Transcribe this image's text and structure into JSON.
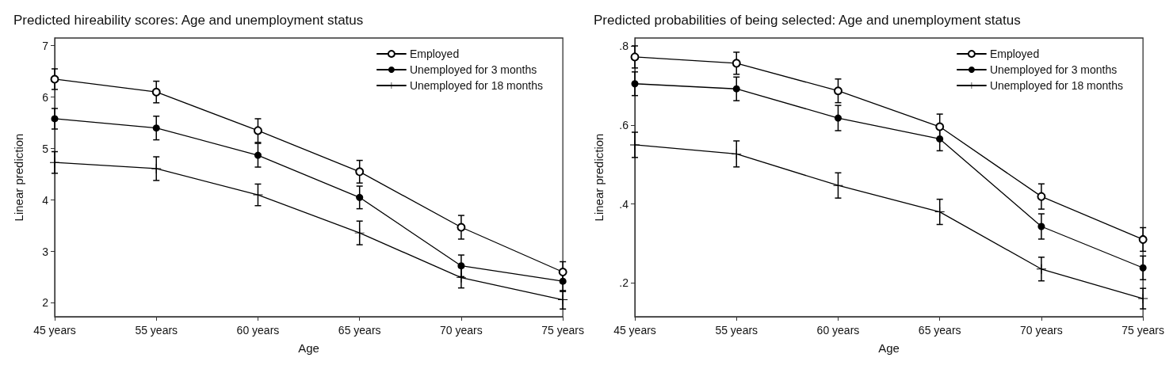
{
  "chart_data": [
    {
      "type": "line",
      "title": "Predicted hireability scores: Age and unemployment status",
      "xlabel": "Age",
      "ylabel": "Linear prediction",
      "categories": [
        "45 years",
        "55 years",
        "60 years",
        "65 years",
        "70 years",
        "75 years"
      ],
      "ylim": [
        1.73,
        7.15
      ],
      "yticks": [
        2,
        3,
        4,
        5,
        6,
        7
      ],
      "grid": false,
      "legend": "top right",
      "line_style": "solid",
      "series": [
        {
          "name": "Employed",
          "color": "#000000",
          "marker": "circle-open",
          "values": [
            6.35,
            6.1,
            5.35,
            4.55,
            3.47,
            2.6
          ],
          "errors": [
            0.2,
            0.21,
            0.23,
            0.22,
            0.23,
            0.2
          ]
        },
        {
          "name": "Unemployed for 3 months",
          "color": "#000000",
          "marker": "circle",
          "values": [
            5.58,
            5.4,
            4.87,
            4.05,
            2.72,
            2.42
          ],
          "errors": [
            0.2,
            0.23,
            0.23,
            0.22,
            0.21,
            0.2
          ]
        },
        {
          "name": "Unemployed for 18 months",
          "color": "#000000",
          "marker": "cross",
          "values": [
            4.73,
            4.61,
            4.1,
            3.36,
            2.49,
            2.06
          ],
          "errors": [
            0.21,
            0.23,
            0.21,
            0.23,
            0.2,
            0.18
          ]
        }
      ]
    },
    {
      "type": "line",
      "title": "Predicted probabilities of being selected: Age and unemployment status",
      "xlabel": "Age",
      "ylabel": "Linear prediction",
      "categories": [
        "45 years",
        "55 years",
        "60 years",
        "65 years",
        "70 years",
        "75 years"
      ],
      "ylim": [
        0.114,
        0.821
      ],
      "yticks": [
        {
          "value": 0.2,
          "label": ".2"
        },
        {
          "value": 0.4,
          "label": ".4"
        },
        {
          "value": 0.6,
          "label": ".6"
        },
        {
          "value": 0.8,
          "label": ".8"
        }
      ],
      "grid": false,
      "legend": "top right",
      "line_style": "solid",
      "series": [
        {
          "name": "Employed",
          "color": "#000000",
          "marker": "circle-open",
          "values": [
            0.773,
            0.757,
            0.687,
            0.596,
            0.419,
            0.31
          ],
          "errors": [
            0.028,
            0.028,
            0.03,
            0.032,
            0.032,
            0.03
          ]
        },
        {
          "name": "Unemployed for 3 months",
          "color": "#000000",
          "marker": "circle",
          "values": [
            0.705,
            0.692,
            0.618,
            0.565,
            0.343,
            0.238
          ],
          "errors": [
            0.03,
            0.03,
            0.032,
            0.03,
            0.032,
            0.03
          ]
        },
        {
          "name": "Unemployed for 18 months",
          "color": "#000000",
          "marker": "cross",
          "values": [
            0.55,
            0.527,
            0.447,
            0.38,
            0.235,
            0.16
          ],
          "errors": [
            0.032,
            0.033,
            0.032,
            0.032,
            0.03,
            0.026
          ]
        }
      ]
    }
  ]
}
